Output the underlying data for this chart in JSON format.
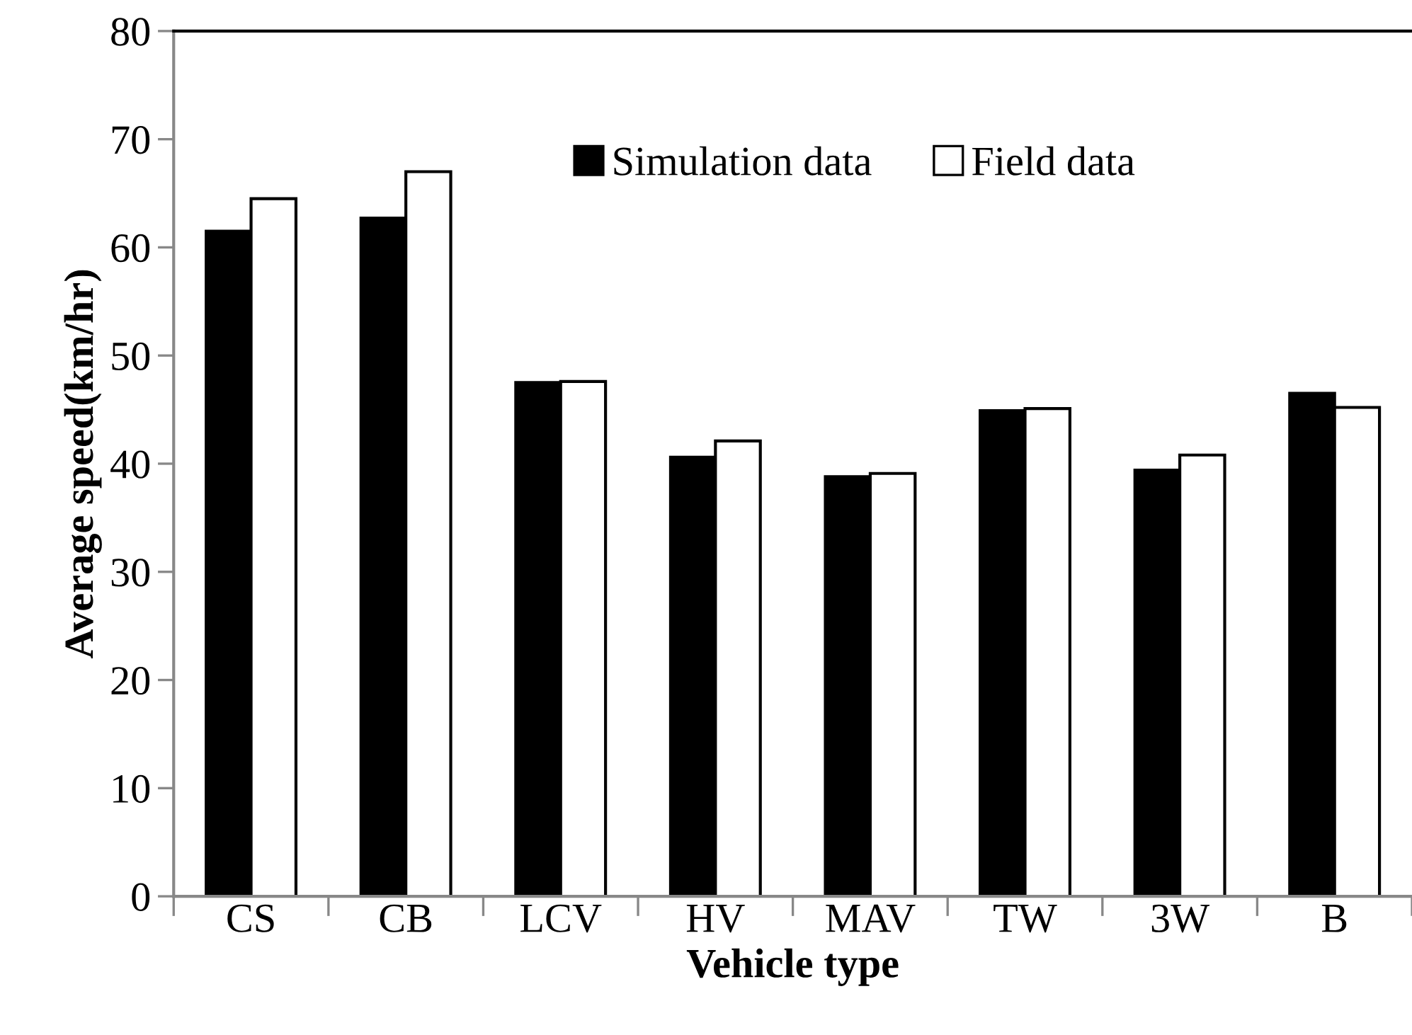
{
  "chart_data": {
    "type": "bar",
    "xlabel": "Vehicle type",
    "ylabel": "Average speed(km/hr)",
    "categories": [
      "CS",
      "CB",
      "LCV",
      "HV",
      "MAV",
      "TW",
      "3W",
      "B"
    ],
    "series": [
      {
        "name": "Simulation data",
        "color": "#000000",
        "values": [
          61.5,
          62.7,
          47.5,
          40.6,
          38.8,
          44.9,
          39.4,
          46.5
        ]
      },
      {
        "name": "Field data",
        "color": "#ffffff",
        "values": [
          64.5,
          67.0,
          47.6,
          42.1,
          39.1,
          45.1,
          40.8,
          45.2
        ]
      }
    ],
    "ylim": [
      0,
      80
    ],
    "yticks": [
      0,
      10,
      20,
      30,
      40,
      50,
      60,
      70,
      80
    ],
    "grid": false,
    "legend": "top"
  }
}
